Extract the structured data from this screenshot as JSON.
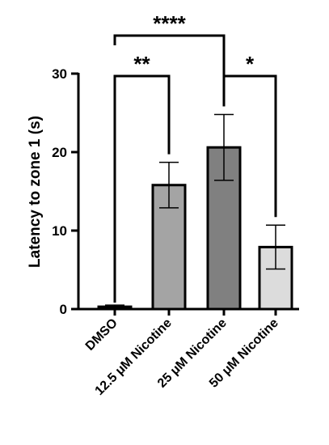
{
  "chart_data": {
    "type": "bar",
    "ylabel": "Latency to zone 1 (s)",
    "xlabel": "",
    "title": "",
    "ylim": [
      0,
      30
    ],
    "yticks": [
      0,
      10,
      20,
      30
    ],
    "categories": [
      "DMSO",
      "12.5 μM Nicotine",
      "25 μM Nicotine",
      "50 μM Nicotine"
    ],
    "values": [
      0.3,
      15.8,
      20.6,
      7.9
    ],
    "errors": [
      0.2,
      2.9,
      4.2,
      2.8
    ],
    "colors": [
      "#d0d0d0",
      "#a4a4a4",
      "#808080",
      "#dcdcdc"
    ],
    "significance": [
      {
        "from": 0,
        "to": 2,
        "label": "****",
        "level": 1
      },
      {
        "from": 0,
        "to": 1,
        "label": "**",
        "level": 0
      },
      {
        "from": 2,
        "to": 3,
        "label": "*",
        "level": 0
      }
    ],
    "grid": false,
    "legend": "none"
  }
}
